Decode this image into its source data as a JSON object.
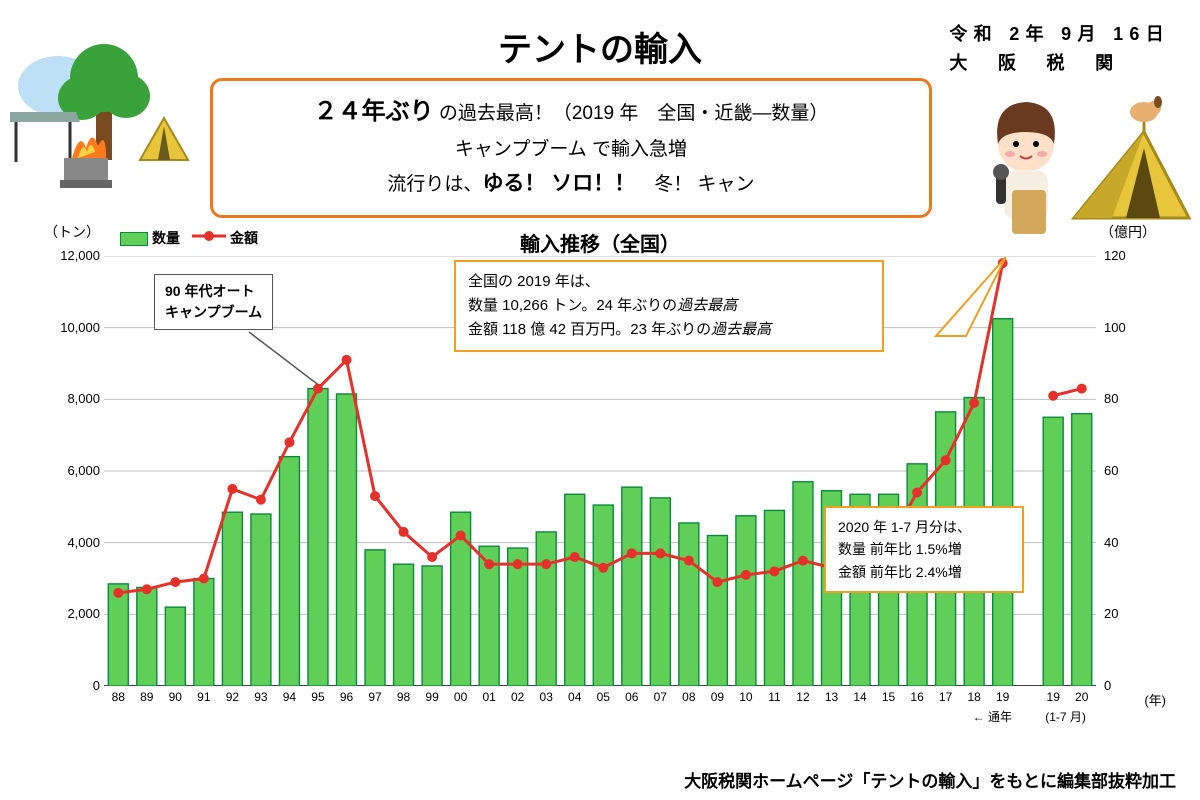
{
  "title": "テントの輸入",
  "date_line1": "令和 2年 9月 16日",
  "date_line2": "大　阪　税　関",
  "summary": {
    "l1_big": "２４年ぶり",
    "l1_rest": " の過去最高！（2019 年　全国・近畿―数量）",
    "l2": "キャンプブーム で輸入急増",
    "l3_a": "流行りは、",
    "l3_b": "ゆる！ ソロ！！",
    "l3_c": "　冬！ キャン"
  },
  "chart": {
    "title": "輸入推移（全国）",
    "y_left_label": "（トン）",
    "y_right_label": "（億円）",
    "legend_bar": "数量",
    "legend_line": "金額",
    "bar_color": "#5fcf58",
    "bar_border": "#0a8a3e",
    "line_color": "#e8302a",
    "marker_color": "#e8302a",
    "grid_color": "#bfbfbf",
    "y_left_max": 12000,
    "y_left_step": 2000,
    "y_right_max": 120,
    "y_right_step": 20,
    "years": [
      "88",
      "89",
      "90",
      "91",
      "92",
      "93",
      "94",
      "95",
      "96",
      "97",
      "98",
      "99",
      "00",
      "01",
      "02",
      "03",
      "04",
      "05",
      "06",
      "07",
      "08",
      "09",
      "10",
      "11",
      "12",
      "13",
      "14",
      "15",
      "16",
      "17",
      "18",
      "19"
    ],
    "bars": [
      2850,
      2750,
      2200,
      3000,
      4850,
      4800,
      6400,
      8300,
      8150,
      3800,
      3400,
      3350,
      4850,
      3900,
      3850,
      4300,
      5350,
      5050,
      5550,
      5250,
      4550,
      4200,
      4750,
      4900,
      5700,
      5450,
      5350,
      5350,
      6200,
      7650,
      8050,
      10250
    ],
    "line_vals": [
      26,
      27,
      29,
      30,
      55,
      52,
      68,
      83,
      91,
      53,
      43,
      36,
      42,
      34,
      34,
      34,
      36,
      33,
      37,
      37,
      35,
      29,
      31,
      32,
      35,
      33,
      34,
      40,
      54,
      63,
      79,
      118
    ],
    "partial_years": [
      "19",
      "20"
    ],
    "partial_bars": [
      7500,
      7600
    ],
    "partial_line": [
      81,
      83
    ],
    "x_sub_full": "← 通年",
    "x_sub_partial": "(1-7 月)",
    "x_year_label": "(年)"
  },
  "callout1": {
    "l1": "90 年代オート",
    "l2": "キャンプブーム"
  },
  "callout2": {
    "l1": "全国の 2019 年は、",
    "l2a": "数量 10,266 トン。24 年ぶりの",
    "l2b": "過去最高",
    "l3a": "金額 118 億 42 百万円。23 年ぶりの",
    "l3b": "過去最高"
  },
  "callout3": {
    "l1": "2020 年 1-7 月分は、",
    "l2": "数量 前年比 1.5%増",
    "l3": "金額 前年比 2.4%増"
  },
  "source": "大阪税関ホームページ「テントの輸入」をもとに編集部抜粋加工"
}
